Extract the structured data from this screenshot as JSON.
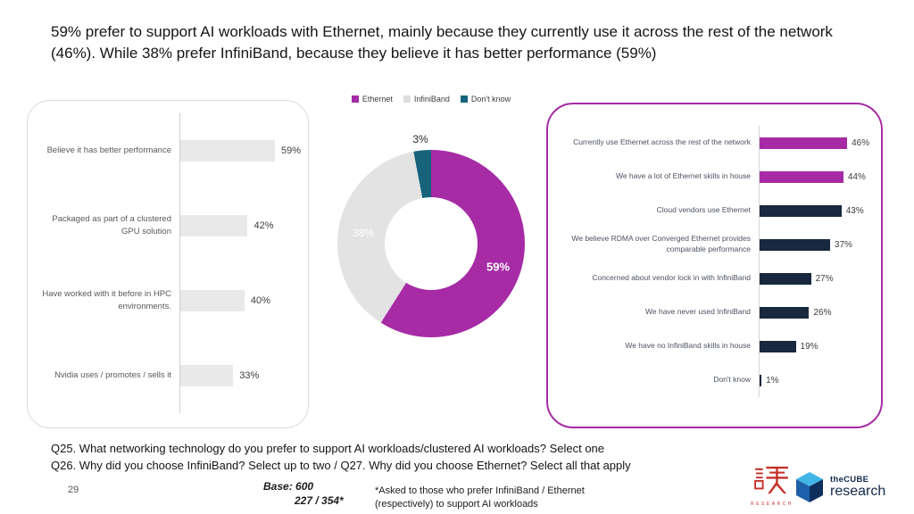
{
  "title": "59% prefer to support AI workloads with Ethernet, mainly because they currently use it across the rest of the network (46%). While 38% prefer InfiniBand, because they believe it has better performance (59%)",
  "colors": {
    "magenta": "#A62BA5",
    "navy": "#17283F",
    "teal": "#16637B",
    "gray_bar": "#E9E9E9",
    "infiniband_gray": "#E3E3E3"
  },
  "legend": {
    "items": [
      {
        "label": "Ethernet",
        "color": "#A62BA5"
      },
      {
        "label": "InfiniBand",
        "color": "#DEDEDE"
      },
      {
        "label": "Don't know",
        "color": "#16637B"
      }
    ]
  },
  "chart_data": [
    {
      "type": "bar",
      "name": "why-infiniband",
      "orientation": "horizontal",
      "bar_color": "#E9E9E9",
      "xlim": [
        0,
        74
      ],
      "items": [
        {
          "label": "Believe it has better performance",
          "value": 59,
          "value_label": "59%"
        },
        {
          "label": "Packaged as part of a clustered GPU solution",
          "value": 42,
          "value_label": "42%"
        },
        {
          "label": "Have worked with it before in HPC environments.",
          "value": 40,
          "value_label": "40%"
        },
        {
          "label": "Nvidia uses / promotes / sells it",
          "value": 33,
          "value_label": "33%"
        }
      ]
    },
    {
      "type": "pie",
      "name": "preferred-networking-technology",
      "donut": true,
      "start_angle_deg": 0,
      "direction": "clockwise",
      "slices": [
        {
          "label": "Ethernet",
          "value": 59,
          "value_label": "59%",
          "color": "#A62BA5"
        },
        {
          "label": "InfiniBand",
          "value": 38,
          "value_label": "38%",
          "color": "#E3E3E3"
        },
        {
          "label": "Don't know",
          "value": 3,
          "value_label": "3%",
          "color": "#16637B"
        }
      ]
    },
    {
      "type": "bar",
      "name": "why-ethernet",
      "orientation": "horizontal",
      "xlim": [
        0,
        60
      ],
      "items": [
        {
          "label": "Currently use Ethernet across the rest of the network",
          "value": 46,
          "value_label": "46%",
          "color": "#A62BA5"
        },
        {
          "label": "We have a lot of Ethernet skills in house",
          "value": 44,
          "value_label": "44%",
          "color": "#A62BA5"
        },
        {
          "label": "Cloud vendors use Ethernet",
          "value": 43,
          "value_label": "43%",
          "color": "#17283F"
        },
        {
          "label": "We believe RDMA over Converged Ethernet  provides comparable performance",
          "value": 37,
          "value_label": "37%",
          "color": "#17283F"
        },
        {
          "label": "Concerned about vendor lock in with InfiniBand",
          "value": 27,
          "value_label": "27%",
          "color": "#17283F"
        },
        {
          "label": "We have never used InfiniBand",
          "value": 26,
          "value_label": "26%",
          "color": "#17283F"
        },
        {
          "label": "We have no InfiniBand skills in house",
          "value": 19,
          "value_label": "19%",
          "color": "#17283F"
        },
        {
          "label": "Don't know",
          "value": 1,
          "value_label": "1%",
          "color": "#17283F"
        }
      ]
    }
  ],
  "footer": {
    "q25": "Q25.  What networking technology do you prefer to support AI workloads/clustered AI workloads? Select one",
    "q26": "Q26.  Why did you choose InfiniBand? Select up to two / Q27.  Why did you choose Ethernet? Select all that apply",
    "page_number": "29",
    "base_line1": "Base: 600",
    "base_line2": "227 / 354*",
    "note_line1": "*Asked to those who prefer InfiniBand / Ethernet",
    "note_line2": "(respectively) to support AI workloads"
  },
  "logos": {
    "mou": {
      "character": "謀",
      "sub": "RESEARCH",
      "color": "#C43129"
    },
    "cube": {
      "top": "theCUBE",
      "bottom": "research",
      "color": "#13294B"
    }
  }
}
